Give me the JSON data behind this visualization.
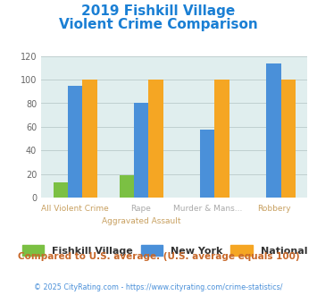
{
  "title_line1": "2019 Fishkill Village",
  "title_line2": "Violent Crime Comparison",
  "cat_top": [
    "",
    "Rape",
    "Murder & Mans...",
    ""
  ],
  "cat_bot": [
    "All Violent Crime",
    "Aggravated Assault",
    "",
    "Robbery"
  ],
  "fishkill": [
    13,
    19,
    0,
    0
  ],
  "newyork": [
    95,
    80,
    58,
    114
  ],
  "national": [
    100,
    100,
    100,
    100
  ],
  "colors": {
    "fishkill": "#7bc043",
    "newyork": "#4a90d9",
    "national": "#f5a623",
    "bg_chart": "#e0eeee",
    "title": "#1a7fd4",
    "grid": "#c0d0d0",
    "cat_top_color": "#aaaaaa",
    "cat_bot_color": "#c8a060",
    "legend_text": "#333333",
    "compare_text": "#c8682a",
    "url_color": "#4a90d9",
    "copyright_color": "#aaaaaa"
  },
  "ylim": [
    0,
    120
  ],
  "yticks": [
    0,
    20,
    40,
    60,
    80,
    100,
    120
  ],
  "footnote": "Compared to U.S. average. (U.S. average equals 100)",
  "copyright": "© 2025 CityRating.com - https://www.cityrating.com/crime-statistics/"
}
